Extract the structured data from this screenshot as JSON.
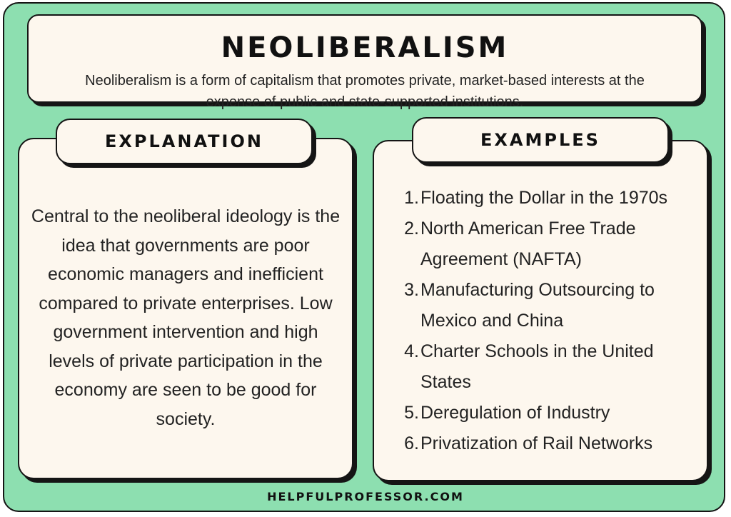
{
  "header": {
    "title": "NEOLIBERALISM",
    "subtitle": "Neoliberalism is a form of capitalism that promotes private, market-based interests at the expense of public and state-supported institutions."
  },
  "explanation": {
    "heading": "EXPLANATION",
    "text": "Central to the neoliberal ideology is the idea that governments are poor economic managers and inefficient compared to private enterprises. Low government intervention and high levels of private participation in the economy are seen to be good for society."
  },
  "examples": {
    "heading": "EXAMPLES",
    "items": [
      {
        "num": "1.",
        "text": "Floating the Dollar in the 1970s"
      },
      {
        "num": "2.",
        "text": "North American Free Trade Agreement (NAFTA)"
      },
      {
        "num": "3.",
        "text": "Manufacturing Outsourcing to Mexico and China"
      },
      {
        "num": "4.",
        "text": "Charter Schools in the United States"
      },
      {
        "num": "5.",
        "text": "Deregulation of Industry"
      },
      {
        "num": "6.",
        "text": "Privatization of Rail Networks"
      }
    ]
  },
  "footer": {
    "site": "HELPFULPROFESSOR.COM"
  },
  "colors": {
    "background": "#8ddfb0",
    "card": "#fdf7ee",
    "outline": "#151515"
  }
}
